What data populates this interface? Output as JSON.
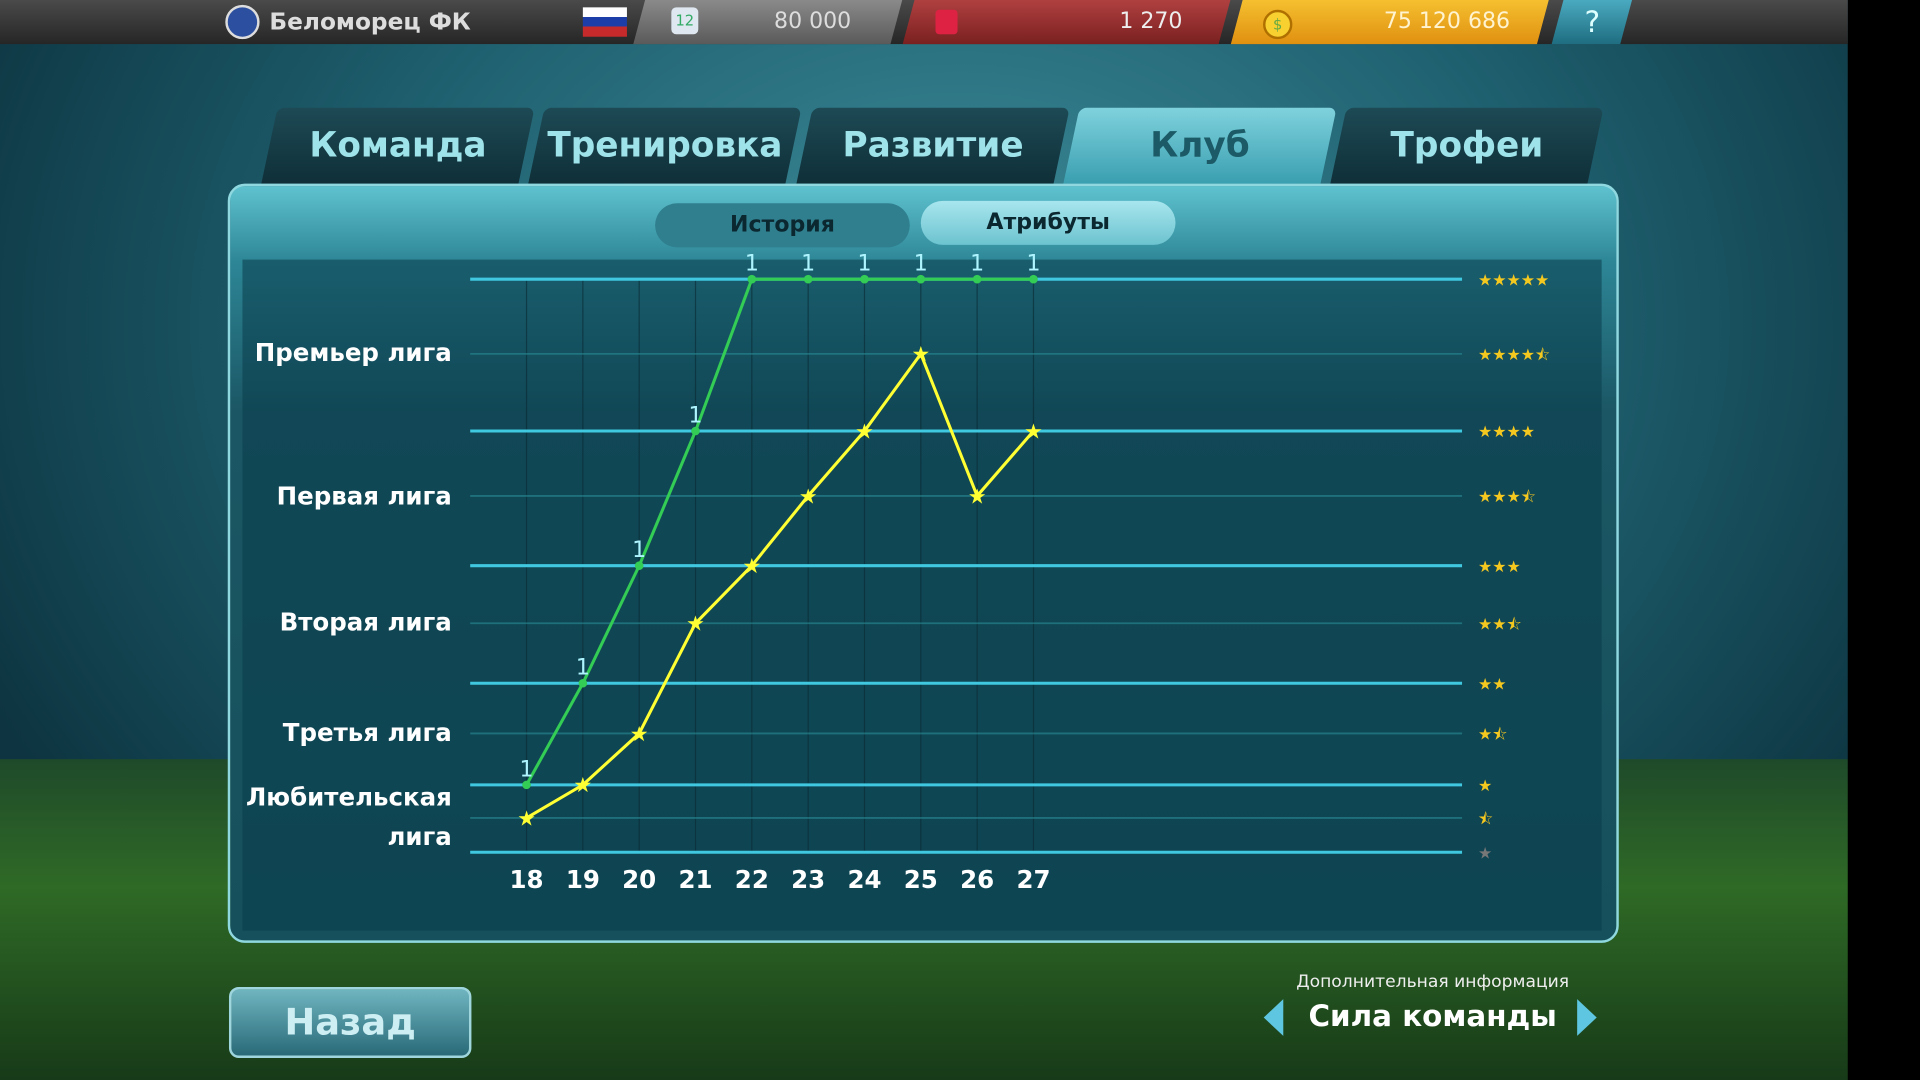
{
  "topbar": {
    "club_name": "Беломорец ФК",
    "jersey_number": "12",
    "stadium_capacity": "80 000",
    "fans": "1 270",
    "money": "75 120 686",
    "help": "?"
  },
  "tabs": [
    {
      "label": "Команда"
    },
    {
      "label": "Тренировка"
    },
    {
      "label": "Развитие"
    },
    {
      "label": "Клуб",
      "active": true
    },
    {
      "label": "Трофеи"
    }
  ],
  "subtabs": [
    {
      "label": "История",
      "active": true
    },
    {
      "label": "Атрибуты"
    }
  ],
  "chart_data": {
    "type": "line",
    "x": [
      18,
      19,
      20,
      21,
      22,
      23,
      24,
      25,
      26,
      27
    ],
    "y_categories": [
      "Любительская лига",
      "Третья лига",
      "Вторая лига",
      "Первая лига",
      "Премьер лига"
    ],
    "star_levels": [
      5,
      4.5,
      4,
      3.5,
      3,
      2.5,
      2,
      1.5,
      1,
      0.5,
      0
    ],
    "series": [
      {
        "color": "#33cc55",
        "values": [
          1,
          2,
          3,
          4,
          5,
          5,
          5,
          5,
          5,
          5
        ],
        "labels": [
          "1",
          "1",
          "1",
          "1",
          "1",
          "1",
          "1",
          "1",
          "1",
          "1"
        ]
      },
      {
        "color": "#ffff33",
        "marker": "star",
        "values": [
          0.5,
          1,
          1.5,
          2.5,
          3,
          3.5,
          4,
          4.5,
          3.5,
          4
        ]
      }
    ],
    "grid": true
  },
  "footer": {
    "back_label": "Назад",
    "more_info_label": "Дополнительная информация",
    "more_info_value": "Сила команды"
  },
  "colors": {
    "accent": "#4fd0e8",
    "money": "#f5b820",
    "fans": "#a83434"
  }
}
